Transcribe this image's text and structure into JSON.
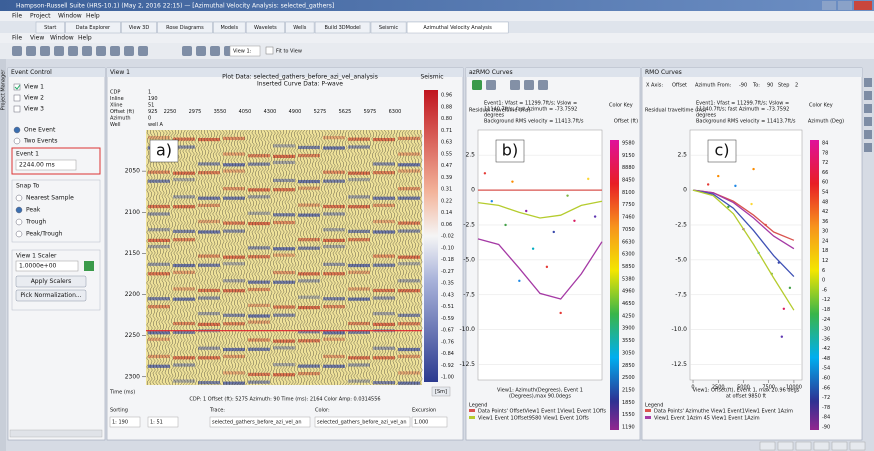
{
  "window": {
    "title": "Hampson-Russell Suite (HRS-10.1) (May 2, 2016 22:15) — [Azimuthal Velocity Analysis: selected_gathers]",
    "menu": [
      "File",
      "Project",
      "Window",
      "Help"
    ],
    "tabs": [
      "Start",
      "Data Explorer",
      "View 3D",
      "Rose Diagrams",
      "Models",
      "Wavelets",
      "Wells",
      "Build 3DModel",
      "Seismic",
      "Azimuthal Velocity Analysis"
    ],
    "submenu": [
      "File",
      "View",
      "Window",
      "Help"
    ],
    "view_select": "View 1:",
    "fit": "Fit to View",
    "side_tab": "Project Manager"
  },
  "event_control": {
    "title": "Event Control",
    "views": [
      "View 1",
      "View 2",
      "View 3"
    ],
    "modes": [
      "One Event",
      "Two Events"
    ],
    "event_label": "Event 1",
    "event_time": "2244.00 ms",
    "snap_title": "Snap To",
    "snap_options": [
      "Nearest Sample",
      "Peak",
      "Trough",
      "Peak/Trough"
    ],
    "scaler_label": "View 1 Scaler",
    "scaler_value": "1.0000e+00",
    "buttons": [
      "Apply Scalers",
      "Pick Normalization..."
    ]
  },
  "seismic_view": {
    "title": "View 1",
    "plot_title": "Plot Data: selected_gathers_before_azi_vel_analysis",
    "subtitle": "Inserted Curve Data: P-wave",
    "panel_label": "a)",
    "colorbar_title": "Seismic",
    "header_labels": [
      "CDP",
      "Inline",
      "Xline",
      "Offset (ft)",
      "Azimuth",
      "Well"
    ],
    "header_values": [
      "1",
      "190",
      "51",
      "925",
      "0",
      "well A"
    ],
    "offsets": [
      "2250",
      "2975",
      "3550",
      "4050",
      "4300",
      "4900",
      "5275",
      "5625",
      "5975",
      "6300"
    ],
    "time_label": "Time (ms)",
    "unit_button": "[Sm]",
    "tlim": [
      2000,
      2310
    ],
    "time_ticks": [
      2050,
      2100,
      2150,
      2200,
      2250,
      2300
    ],
    "colorbar_ticks": [
      "0.96",
      "0.88",
      "0.80",
      "0.71",
      "0.63",
      "0.55",
      "0.47",
      "0.39",
      "0.31",
      "0.22",
      "0.14",
      "0.06",
      "-0.02",
      "-0.10",
      "-0.18",
      "-0.27",
      "-0.35",
      "-0.43",
      "-0.51",
      "-0.59",
      "-0.67",
      "-0.76",
      "-0.84",
      "-0.92",
      "-1.00"
    ],
    "status": "CDP: 1  Offset (ft): 5275  Azimuth: 90  Time (ms): 2164  Color Amp: 0.0314556",
    "controls": {
      "sorting": "Sorting",
      "trace": "Trace:",
      "color": "Color:",
      "excursion": "Excursion",
      "sort1": "1: 190",
      "sort2": "1: 51",
      "trace_value": "selected_gathers_before_azi_vel_an",
      "color_value": "selected_gathers_before_azi_vel_an",
      "excursion_value": "1.000"
    }
  },
  "chart_data": [
    {
      "type": "line",
      "title": "azRMO Curves",
      "panel_label": "b)",
      "y_label": "Residual traveltime (ms)",
      "info": [
        "Event1: Vfast = 11299.7ft/s; Vslow =",
        "11140.7ft/s; fast Azimuth = -73.7592",
        "degrees",
        "Background RMS velocity = 11413.7ft/s"
      ],
      "x_label": [
        "View1: Azimuth(Degrees), Event 1",
        "(Degrees),max 90.0degs"
      ],
      "xlim": [
        0,
        90
      ],
      "ylim": [
        -13.6,
        4.3
      ],
      "yticks": [
        2.5,
        0,
        -2.5,
        {
          "value": -5,
          "label": "-5.0"
        },
        -7.5,
        {
          "value": -10,
          "label": "-10.0"
        },
        -12.5
      ],
      "series": [
        {
          "color": "#d9534f",
          "x": [
            0,
            15,
            30,
            45,
            60,
            75,
            90
          ],
          "values": [
            0,
            0,
            0,
            0,
            0,
            0,
            0
          ]
        },
        {
          "color": "#b5cc2e",
          "x": [
            0,
            15,
            30,
            45,
            60,
            75,
            90
          ],
          "values": [
            -0.9,
            -1.1,
            -1.6,
            -2.0,
            -1.8,
            -1.1,
            -0.8
          ]
        },
        {
          "color": "#a53aa5",
          "x": [
            0,
            15,
            30,
            45,
            60,
            75,
            90
          ],
          "values": [
            -3.5,
            -3.9,
            -5.6,
            -7.4,
            -7.8,
            -6.0,
            -3.7
          ]
        }
      ],
      "points": {
        "x": [
          5,
          10,
          20,
          25,
          35,
          40,
          50,
          55,
          65,
          70,
          80,
          85,
          30,
          60
        ],
        "values": [
          1.2,
          -0.8,
          -2.5,
          0.6,
          -1.5,
          -4.2,
          -5.5,
          -3.0,
          -0.4,
          -2.2,
          0.8,
          -1.9,
          -6.5,
          -8.8
        ],
        "colors": [
          "#e53935",
          "#1e88e5",
          "#43a047",
          "#fb8c00",
          "#8e24aa",
          "#00acc1",
          "#e53935",
          "#3949ab",
          "#7cb342",
          "#d81b60",
          "#fdd835",
          "#5e35b1",
          "#1e88e5",
          "#e53935"
        ]
      },
      "color_key_title": "Color Key",
      "color_key_unit": "Offset (ft)",
      "color_key": [
        "9580",
        "9150",
        "8880",
        "8450",
        "8100",
        "7750",
        "7460",
        "7050",
        "6630",
        "6300",
        "5850",
        "5380",
        "4960",
        "4650",
        "4250",
        "3900",
        "3550",
        "3050",
        "2850",
        "2500",
        "2150",
        "1850",
        "1550",
        "1190"
      ],
      "legend_title": "Legend",
      "legend": [
        "Data Points' OffsetView1 Event 1View1 Event 1Offs",
        "View1 Event 1Offset9580 View1 Event 1Offs"
      ]
    },
    {
      "type": "line",
      "title": "RMO Curves",
      "panel_label": "c)",
      "y_label": "Residual traveltime (ms)",
      "toolbar": [
        "X Axis:",
        "Offset",
        "Azimuth From:",
        "-90",
        "To:",
        "90",
        "Step",
        "2"
      ],
      "info": [
        "Event1: Vfast = 11299.7ft/s; Vslow =",
        "11140.7ft/s; fast Azimuth = -73.7592",
        "degrees",
        "Background RMS velocity = 11413.7ft/s"
      ],
      "x_label": [
        "View1: Offset(ft), Event 1, max 20.96 degs",
        "at offset 9850 ft"
      ],
      "xlim": [
        -300,
        10800
      ],
      "ylim": [
        -13.6,
        4.3
      ],
      "xticks": [
        0,
        2500,
        5000,
        7500,
        10000
      ],
      "yticks": [
        2.5,
        0,
        -2.5,
        {
          "value": -5,
          "label": "-5.0"
        },
        -7.5,
        {
          "value": -10,
          "label": "-10.0"
        },
        -12.5
      ],
      "series": [
        {
          "color": "#d9534f",
          "x": [
            0,
            2000,
            4000,
            6000,
            8000,
            10000
          ],
          "values": [
            0,
            -0.2,
            -0.8,
            -1.8,
            -3.0,
            -3.6
          ]
        },
        {
          "color": "#a53aa5",
          "x": [
            0,
            2000,
            4000,
            6000,
            8000,
            10000
          ],
          "values": [
            0,
            -0.2,
            -0.9,
            -2.0,
            -3.3,
            -4.2
          ]
        },
        {
          "color": "#3f51b5",
          "x": [
            0,
            2000,
            4000,
            6000,
            8000,
            10000
          ],
          "values": [
            0,
            -0.3,
            -1.3,
            -2.9,
            -4.7,
            -6.2
          ]
        },
        {
          "color": "#b5cc2e",
          "x": [
            0,
            2000,
            4000,
            6000,
            8000,
            10000
          ],
          "values": [
            0,
            -0.4,
            -1.7,
            -3.9,
            -6.3,
            -8.6
          ]
        }
      ],
      "points": {
        "x": [
          1500,
          2500,
          3500,
          4200,
          5000,
          5800,
          6500,
          7200,
          7800,
          8500,
          9000,
          9600,
          6000,
          8800
        ],
        "values": [
          0.4,
          1.0,
          -1.2,
          0.3,
          -2.8,
          -1.0,
          -4.5,
          -2.5,
          -6.0,
          -5.2,
          -8.5,
          -7.0,
          1.5,
          -10.5
        ],
        "colors": [
          "#e53935",
          "#fb8c00",
          "#43a047",
          "#1e88e5",
          "#8e24aa",
          "#fdd835",
          "#00acc1",
          "#e53935",
          "#7cb342",
          "#3949ab",
          "#d81b60",
          "#43a047",
          "#fb8c00",
          "#5e35b1"
        ]
      },
      "color_key_title": "Color Key",
      "color_key_unit": "Azimuth (Deg)",
      "color_key": [
        "84",
        "78",
        "72",
        "66",
        "60",
        "54",
        "48",
        "42",
        "36",
        "30",
        "24",
        "18",
        "12",
        "6",
        "0",
        "-6",
        "-12",
        "-18",
        "-24",
        "-30",
        "-36",
        "-42",
        "-48",
        "-54",
        "-60",
        "-66",
        "-72",
        "-78",
        "-84",
        "-90"
      ],
      "legend_title": "Legend",
      "legend": [
        "Data Points' Azimuthe View1 Event1View1 Event 1Azim",
        "View1 Event 1Azim 45 View1 Event 1Azim"
      ]
    }
  ]
}
